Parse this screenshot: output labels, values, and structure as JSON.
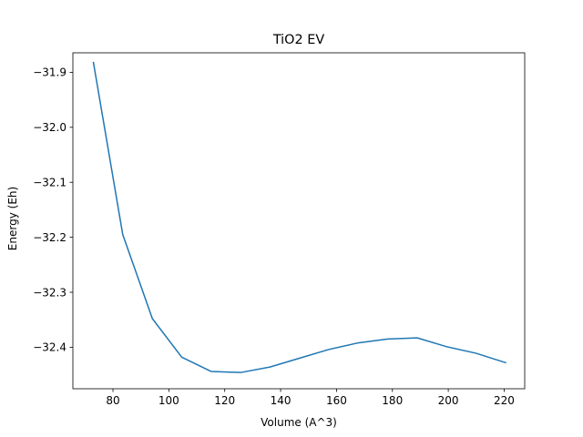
{
  "chart_data": {
    "type": "line",
    "title": "TiO2 EV",
    "xlabel": "Volume (A^3)",
    "ylabel": "Energy (Eh)",
    "xlim": [
      65.65,
      227.35
    ],
    "ylim": [
      -32.4755,
      -31.8645
    ],
    "xticks": [
      80,
      100,
      120,
      140,
      160,
      180,
      200,
      220
    ],
    "yticks": [
      -32.4,
      -32.3,
      -32.2,
      -32.1,
      -32.0,
      -31.9
    ],
    "grid": false,
    "legend": "none",
    "color": "#1f77b4",
    "series": [
      {
        "x": [
          73.0,
          83.5,
          94.1,
          104.6,
          115.1,
          125.7,
          136.2,
          146.7,
          157.3,
          167.8,
          178.3,
          188.9,
          199.4,
          210.0,
          220.5
        ],
        "y": [
          -31.882,
          -32.195,
          -32.348,
          -32.418,
          -32.444,
          -32.446,
          -32.436,
          -32.42,
          -32.404,
          -32.392,
          -32.385,
          -32.383,
          -32.399,
          -32.411,
          -32.428
        ]
      }
    ]
  }
}
